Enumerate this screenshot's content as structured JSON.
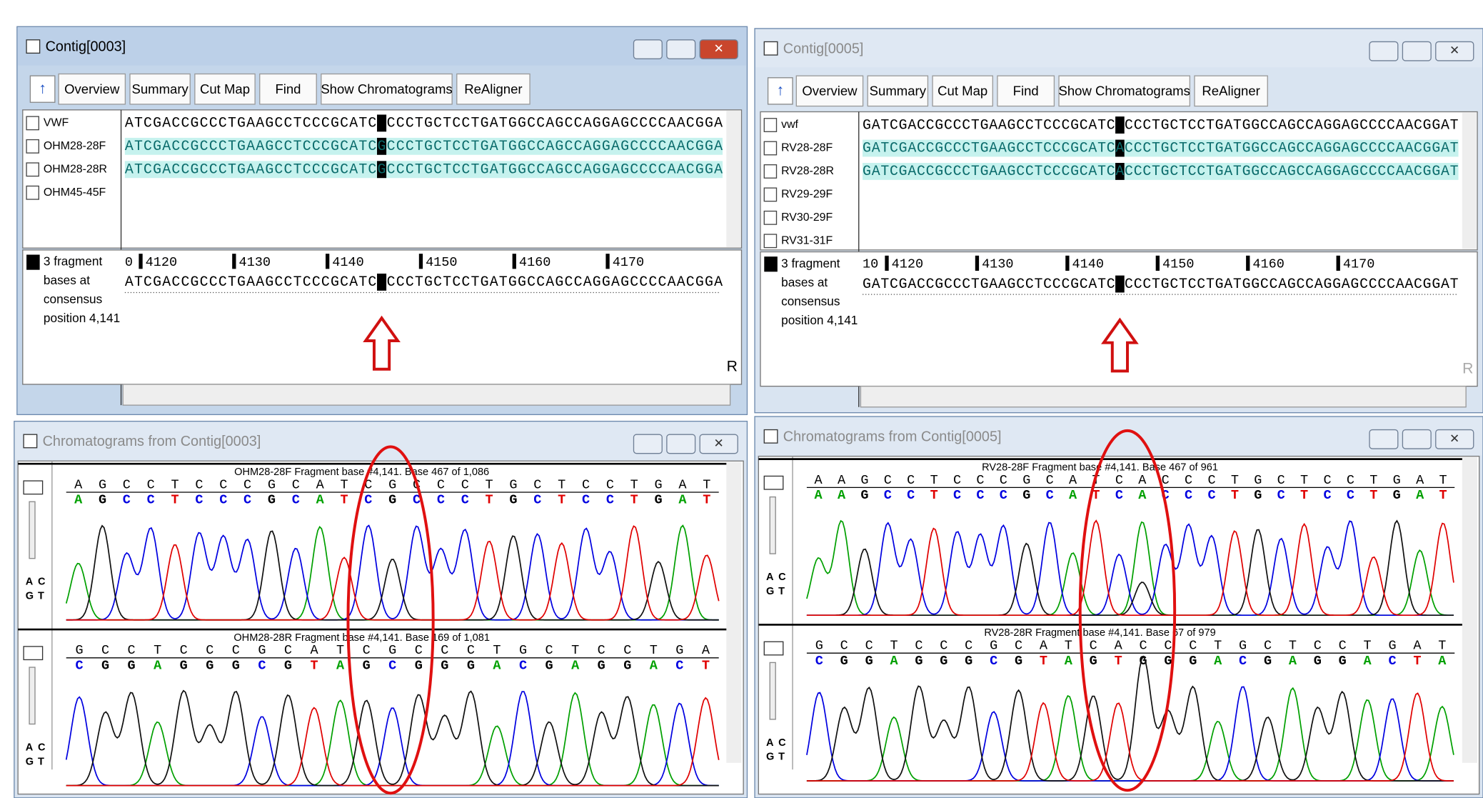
{
  "contigs": [
    {
      "title": "Contig[0003]",
      "toolbar": [
        "Overview",
        "Summary",
        "Cut Map",
        "Find",
        "Show Chromatograms",
        "ReAligner"
      ],
      "reads": [
        {
          "name": "VWF",
          "seq": "ATCGACCGCCCTGAAGCCTCCCGCATCACCCTGCTCCTGATGGCCAGCCAGGAGCCCCAACGGA"
        },
        {
          "name": "OHM28-28F",
          "seq": "ATCGACCGCCCTGAAGCCTCCCGCATCGCCCTGCTCCTGATGGCCAGCCAGGAGCCCCAACGGA"
        },
        {
          "name": "OHM28-28R",
          "seq": "ATCGACCGCCCTGAAGCCTCCCGCATCGCCCTGCTCCTGATGGCCAGCCAGGAGCCCCAACGGA"
        },
        {
          "name": "OHM45-45F",
          "seq": ""
        }
      ],
      "ruler": [
        "0",
        "4120",
        "4130",
        "4140",
        "4150",
        "4160",
        "4170"
      ],
      "consensus": "ATCGACCGCCCTGAAGCCTCCCGCATCGCCCTGCTCCTGATGGCCAGCCAGGAGCCCCAACGGA",
      "info": [
        "3 fragment",
        "bases at",
        "consensus",
        "position 4,141"
      ],
      "side_label": "R"
    },
    {
      "title": "Contig[0005]",
      "toolbar": [
        "Overview",
        "Summary",
        "Cut Map",
        "Find",
        "Show Chromatograms",
        "ReAligner"
      ],
      "reads": [
        {
          "name": "vwf",
          "seq": "GATCGACCGCCCTGAAGCCTCCCGCATCACCCTGCTCCTGATGGCCAGCCAGGAGCCCCAACGGAT"
        },
        {
          "name": "RV28-28F",
          "seq": "GATCGACCGCCCTGAAGCCTCCCGCATCACCCTGCTCCTGATGGCCAGCCAGGAGCCCCAACGGAT"
        },
        {
          "name": "RV28-28R",
          "seq": "GATCGACCGCCCTGAAGCCTCCCGCATCACCCTGCTCCTGATGGCCAGCCAGGAGCCCCAACGGAT"
        },
        {
          "name": "RV29-29F",
          "seq": ""
        },
        {
          "name": "RV30-29F",
          "seq": ""
        },
        {
          "name": "RV31-31F",
          "seq": ""
        }
      ],
      "ruler": [
        "10",
        "4120",
        "4130",
        "4140",
        "4150",
        "4160",
        "4170"
      ],
      "consensus": "GATCGACCGCCCTGAAGCCTCCCGCATCACCCTGCTCCTGATGGCCAGCCAGGAGCCCCAACGGAT",
      "info": [
        "3 fragment",
        "bases at",
        "consensus",
        "position 4,141"
      ],
      "side_label": "R"
    }
  ],
  "chromatograms": [
    {
      "title": "Chromatograms from Contig[0003]",
      "buttons": [
        "A",
        "C",
        "G",
        "T"
      ],
      "tracks": [
        {
          "header": "OHM28-28F Fragment base #4,141. Base 467 of 1,086",
          "calls": "AGCCTCCCGCATCGCCCTGCTCCTGAT",
          "bases": "AGCCTCCCGCATCGCCCTGCTCCTGAT"
        },
        {
          "header": "OHM28-28R Fragment base #4,141. Base 169 of 1,081",
          "calls": "GCCTCCCGCATCGCCCTGCTCCTGA",
          "bases": "CGGAGGGCGTAGCGGGACGAGGACT"
        }
      ]
    },
    {
      "title": "Chromatograms from Contig[0005]",
      "buttons": [
        "A",
        "C",
        "G",
        "T"
      ],
      "tracks": [
        {
          "header": "RV28-28F Fragment base #4,141. Base 467 of 961",
          "calls": "AAGCCTCCCGCATCACCCTGCTCCTGAT",
          "bases": "AAGCCTCCCGCATCACCCTGCTCCTGAT"
        },
        {
          "header": "RV28-28R Fragment base #4,141. Base 67 of 979",
          "calls": "GCCTCCCGCATCACCCTGCTCCTGAT",
          "bases": "CGGAGGGCGTAGTGGGACGAGGACTA"
        }
      ]
    }
  ]
}
